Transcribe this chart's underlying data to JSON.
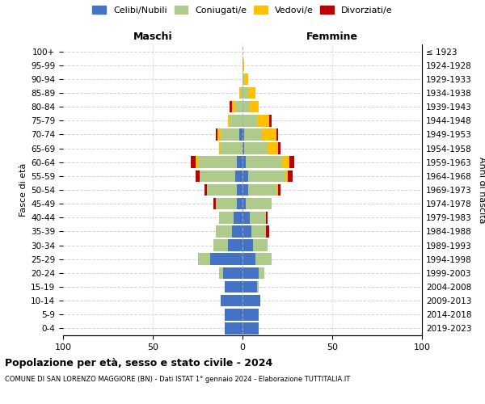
{
  "age_groups": [
    "0-4",
    "5-9",
    "10-14",
    "15-19",
    "20-24",
    "25-29",
    "30-34",
    "35-39",
    "40-44",
    "45-49",
    "50-54",
    "55-59",
    "60-64",
    "65-69",
    "70-74",
    "75-79",
    "80-84",
    "85-89",
    "90-94",
    "95-99",
    "100+"
  ],
  "birth_years": [
    "2019-2023",
    "2014-2018",
    "2009-2013",
    "2004-2008",
    "1999-2003",
    "1994-1998",
    "1989-1993",
    "1984-1988",
    "1979-1983",
    "1974-1978",
    "1969-1973",
    "1964-1968",
    "1959-1963",
    "1954-1958",
    "1949-1953",
    "1944-1948",
    "1939-1943",
    "1934-1938",
    "1929-1933",
    "1924-1928",
    "≤ 1923"
  ],
  "males": {
    "celibi": [
      10,
      10,
      12,
      10,
      11,
      18,
      8,
      6,
      5,
      3,
      3,
      4,
      3,
      0,
      2,
      0,
      0,
      0,
      0,
      0,
      0
    ],
    "coniugati": [
      0,
      0,
      0,
      0,
      2,
      7,
      8,
      9,
      8,
      12,
      17,
      20,
      22,
      12,
      10,
      7,
      4,
      1,
      0,
      0,
      0
    ],
    "vedovi": [
      0,
      0,
      0,
      0,
      0,
      0,
      0,
      0,
      0,
      0,
      0,
      0,
      1,
      1,
      2,
      1,
      2,
      1,
      0,
      0,
      0
    ],
    "divorziati": [
      0,
      0,
      0,
      0,
      0,
      0,
      0,
      0,
      0,
      1,
      1,
      2,
      3,
      0,
      1,
      0,
      1,
      0,
      0,
      0,
      0
    ]
  },
  "females": {
    "nubili": [
      9,
      9,
      10,
      8,
      9,
      7,
      6,
      5,
      4,
      2,
      3,
      3,
      2,
      1,
      1,
      0,
      0,
      0,
      0,
      0,
      0
    ],
    "coniugate": [
      0,
      0,
      0,
      1,
      3,
      9,
      8,
      8,
      9,
      14,
      16,
      21,
      20,
      13,
      10,
      8,
      4,
      3,
      1,
      0,
      0
    ],
    "vedove": [
      0,
      0,
      0,
      0,
      0,
      0,
      0,
      0,
      0,
      0,
      1,
      1,
      4,
      6,
      8,
      7,
      5,
      4,
      2,
      1,
      0
    ],
    "divorziate": [
      0,
      0,
      0,
      0,
      0,
      0,
      0,
      2,
      1,
      0,
      1,
      3,
      3,
      1,
      1,
      1,
      0,
      0,
      0,
      0,
      0
    ]
  },
  "colors": {
    "celibi": "#4472C4",
    "coniugati": "#AECB8C",
    "vedovi": "#FFC000",
    "divorziati": "#C00000"
  },
  "title": "Popolazione per età, sesso e stato civile - 2024",
  "subtitle": "COMUNE DI SAN LORENZO MAGGIORE (BN) - Dati ISTAT 1° gennaio 2024 - Elaborazione TUTTITALIA.IT",
  "xlabel_left": "Maschi",
  "xlabel_right": "Femmine",
  "ylabel_left": "Fasce di età",
  "ylabel_right": "Anni di nascita",
  "xlim": 100,
  "legend_labels": [
    "Celibi/Nubili",
    "Coniugati/e",
    "Vedovi/e",
    "Divorziati/e"
  ],
  "background_color": "#FFFFFF"
}
